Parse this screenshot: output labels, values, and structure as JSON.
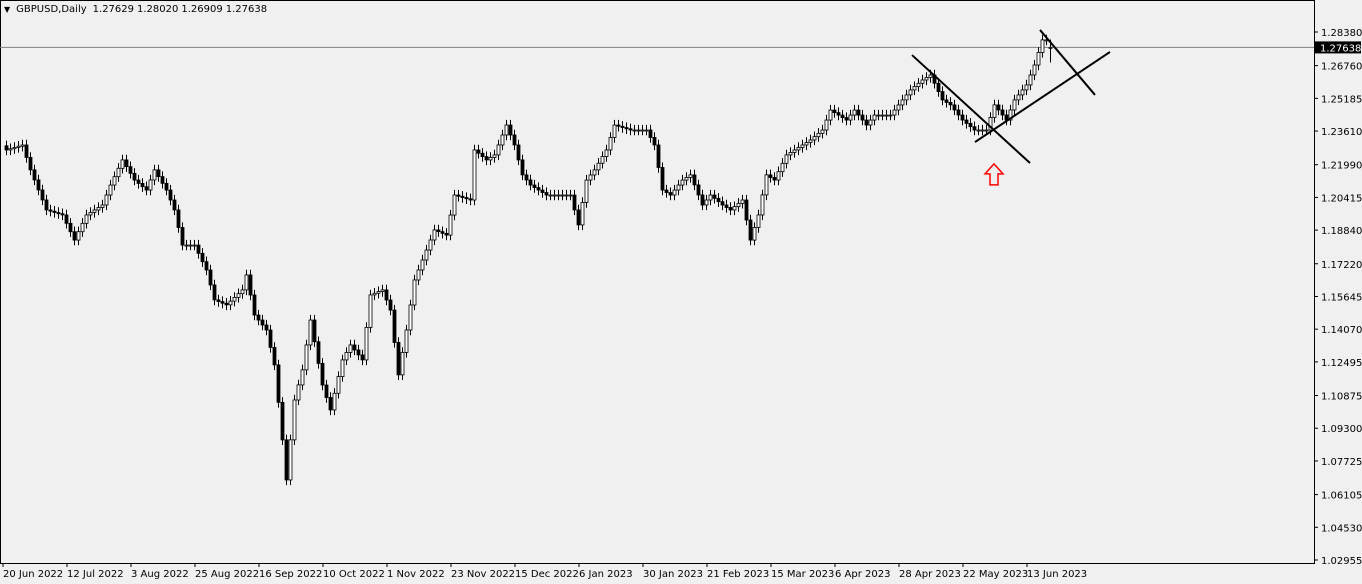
{
  "header": {
    "symbol_timeframe": "GBPUSD,Daily",
    "open": "1.27629",
    "high": "1.28020",
    "low": "1.26909",
    "close": "1.27638",
    "menu_icon": "triangle-down-icon"
  },
  "chart_data": {
    "type": "candlestick",
    "title": "GBPUSD,Daily",
    "x_unit": "trading day index (daily bars)",
    "ylim": [
      1.02955,
      1.2838
    ],
    "y_ticks": [
      "1.28380",
      "1.26760",
      "1.25185",
      "1.23610",
      "1.21990",
      "1.20415",
      "1.18840",
      "1.17220",
      "1.15645",
      "1.14070",
      "1.12495",
      "1.10875",
      "1.09300",
      "1.07725",
      "1.06105",
      "1.04530",
      "1.02955"
    ],
    "x_ticks": [
      "20 Jun 2022",
      "12 Jul 2022",
      "3 Aug 2022",
      "25 Aug 2022",
      "16 Sep 2022",
      "10 Oct 2022",
      "1 Nov 2022",
      "23 Nov 2022",
      "15 Dec 2022",
      "6 Jan 2023",
      "30 Jan 2023",
      "21 Feb 2023",
      "15 Mar 2023",
      "6 Apr 2023",
      "28 Apr 2023",
      "22 May 2023",
      "13 Jun 2023"
    ],
    "current_price": "1.27638",
    "last_bar": {
      "open": 1.27629,
      "high": 1.2802,
      "low": 1.26909,
      "close": 1.27638
    },
    "closes": [
      [
        0,
        1.227
      ],
      [
        4,
        1.2294
      ],
      [
        6,
        1.2174
      ],
      [
        10,
        1.1981
      ],
      [
        14,
        1.1957
      ],
      [
        17,
        1.1836
      ],
      [
        20,
        1.1957
      ],
      [
        24,
        1.2005
      ],
      [
        26,
        1.2101
      ],
      [
        29,
        1.2222
      ],
      [
        32,
        1.2125
      ],
      [
        35,
        1.2077
      ],
      [
        37,
        1.2174
      ],
      [
        40,
        1.2077
      ],
      [
        42,
        1.1981
      ],
      [
        44,
        1.1812
      ],
      [
        47,
        1.1812
      ],
      [
        50,
        1.1692
      ],
      [
        52,
        1.1548
      ],
      [
        55,
        1.1524
      ],
      [
        59,
        1.1596
      ],
      [
        60,
        1.1668
      ],
      [
        62,
        1.1475
      ],
      [
        65,
        1.1403
      ],
      [
        67,
        1.1235
      ],
      [
        69,
        1.0874
      ],
      [
        70,
        1.0681
      ],
      [
        71,
        1.0874
      ],
      [
        72,
        1.1066
      ],
      [
        74,
        1.1211
      ],
      [
        76,
        1.1451
      ],
      [
        79,
        1.1138
      ],
      [
        81,
        1.1018
      ],
      [
        84,
        1.1259
      ],
      [
        86,
        1.1331
      ],
      [
        89,
        1.1259
      ],
      [
        91,
        1.1572
      ],
      [
        94,
        1.1596
      ],
      [
        96,
        1.1499
      ],
      [
        98,
        1.1187
      ],
      [
        100,
        1.1403
      ],
      [
        102,
        1.1644
      ],
      [
        105,
        1.1788
      ],
      [
        107,
        1.1885
      ],
      [
        110,
        1.186
      ],
      [
        112,
        1.2053
      ],
      [
        116,
        1.2029
      ],
      [
        117,
        1.227
      ],
      [
        120,
        1.2222
      ],
      [
        122,
        1.2246
      ],
      [
        125,
        1.239
      ],
      [
        127,
        1.2294
      ],
      [
        129,
        1.215
      ],
      [
        131,
        1.2101
      ],
      [
        135,
        1.2053
      ],
      [
        139,
        1.2053
      ],
      [
        141,
        1.2053
      ],
      [
        143,
        1.1909
      ],
      [
        145,
        1.2125
      ],
      [
        147,
        1.2174
      ],
      [
        150,
        1.227
      ],
      [
        152,
        1.239
      ],
      [
        156,
        1.2366
      ],
      [
        160,
        1.2366
      ],
      [
        162,
        1.2294
      ],
      [
        164,
        1.2077
      ],
      [
        166,
        1.2053
      ],
      [
        169,
        1.2125
      ],
      [
        171,
        1.215
      ],
      [
        174,
        1.2005
      ],
      [
        176,
        1.2053
      ],
      [
        179,
        1.2005
      ],
      [
        181,
        1.1981
      ],
      [
        184,
        1.2029
      ],
      [
        186,
        1.1836
      ],
      [
        188,
        1.1957
      ],
      [
        190,
        1.215
      ],
      [
        192,
        1.2125
      ],
      [
        195,
        1.2246
      ],
      [
        197,
        1.227
      ],
      [
        201,
        1.2318
      ],
      [
        204,
        1.2366
      ],
      [
        206,
        1.2462
      ],
      [
        210,
        1.2414
      ],
      [
        212,
        1.2462
      ],
      [
        215,
        1.239
      ],
      [
        217,
        1.2438
      ],
      [
        221,
        1.2438
      ],
      [
        224,
        1.2511
      ],
      [
        226,
        1.2559
      ],
      [
        229,
        1.2607
      ],
      [
        231,
        1.2631
      ],
      [
        234,
        1.2511
      ],
      [
        236,
        1.2487
      ],
      [
        239,
        1.2414
      ],
      [
        242,
        1.2366
      ],
      [
        245,
        1.2366
      ],
      [
        247,
        1.2487
      ],
      [
        250,
        1.2414
      ],
      [
        252,
        1.2511
      ],
      [
        255,
        1.2583
      ],
      [
        257,
        1.2679
      ],
      [
        259,
        1.28
      ],
      [
        260,
        1.28
      ],
      [
        261,
        1.27638
      ]
    ],
    "trendlines": [
      {
        "from": [
          226.75,
          1.2727
        ],
        "to": [
          256.25,
          1.2207
        ]
      },
      {
        "from": [
          242.5,
          1.2308
        ],
        "to": [
          276.25,
          1.2742
        ]
      },
      {
        "from": [
          258.75,
          1.2848
        ],
        "to": [
          272.5,
          1.2535
        ]
      }
    ],
    "annotations": [
      {
        "type": "arrow-up",
        "at": [
          247,
          1.215
        ],
        "color": "#ff0000"
      }
    ],
    "colors": {
      "background": "#f0f0f0",
      "candle": "#000000",
      "bull_body": "#ffffff",
      "bear_body": "#000000",
      "price_line": "#808080",
      "arrow": "#ff0000"
    },
    "grid": false
  }
}
